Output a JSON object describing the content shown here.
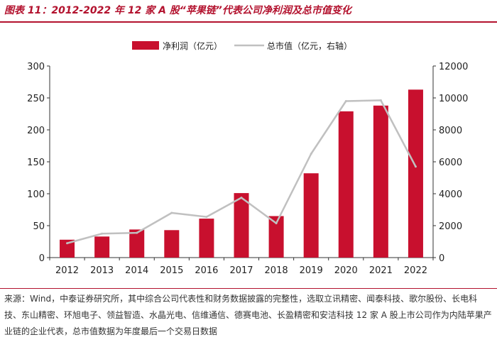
{
  "header": {
    "title": "图表 11：2012-2022 年 12 家 A 股“苹果链”代表公司净利润及总市值变化"
  },
  "chart_data": {
    "type": "bar+line",
    "categories": [
      "2012",
      "2013",
      "2014",
      "2015",
      "2016",
      "2017",
      "2018",
      "2019",
      "2020",
      "2021",
      "2022"
    ],
    "series": [
      {
        "name": "净利润（亿元）",
        "kind": "bar",
        "axis": "left",
        "color": "#c8102e",
        "values": [
          28,
          33,
          44,
          43,
          61,
          101,
          65,
          132,
          229,
          238,
          263
        ]
      },
      {
        "name": "总市值（亿元，右轴）",
        "kind": "line",
        "axis": "right",
        "color": "#c0c0c0",
        "values": [
          900,
          1500,
          1550,
          2800,
          2550,
          3750,
          2150,
          6500,
          9800,
          9850,
          5700
        ]
      }
    ],
    "y_left": {
      "min": 0,
      "max": 300,
      "ticks": [
        0,
        50,
        100,
        150,
        200,
        250,
        300
      ]
    },
    "y_right": {
      "min": 0,
      "max": 12000,
      "ticks": [
        0,
        2000,
        4000,
        6000,
        8000,
        10000,
        12000
      ]
    },
    "legend_position": "top-center",
    "grid": false
  },
  "footer": {
    "source": "来源：Wind，中泰证券研究所，其中综合公司代表性和财务数据披露的完整性，选取立讯精密、闻泰科技、歌尔股份、长电科技、东山精密、环旭电子、领益智造、水晶光电、信维通信、德赛电池、长盈精密和安洁科技 12 家 A 股上市公司作为内陆苹果产业链的企业代表，总市值数据为年度最后一个交易日数据"
  }
}
